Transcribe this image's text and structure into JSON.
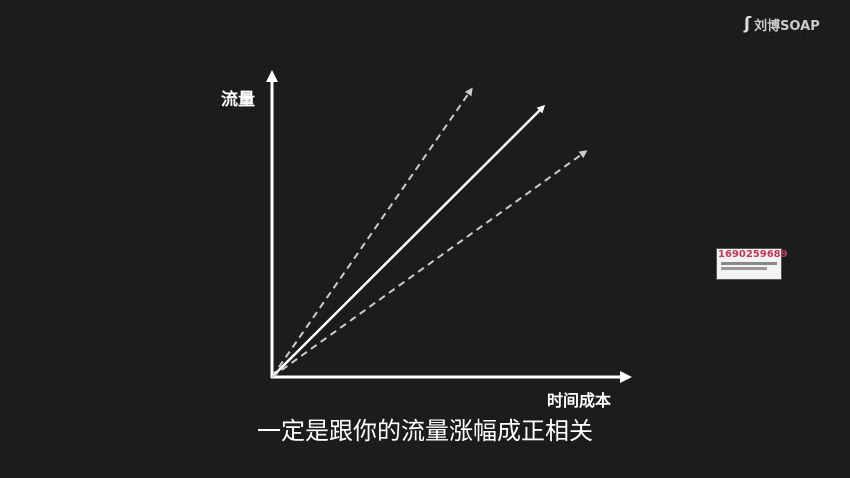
{
  "diagram": {
    "y_axis_label": "流量",
    "x_axis_label": "时间成本",
    "lines": [
      {
        "style": "dashed",
        "role": "upper"
      },
      {
        "style": "solid",
        "role": "middle"
      },
      {
        "style": "dashed",
        "role": "lower"
      }
    ],
    "line_color": "#ffffff",
    "dashed_color": "#cccccc"
  },
  "subtitle": "一定是跟你的流量涨幅成正相关",
  "logo": {
    "name": "刘博SOAP"
  },
  "watermark": {
    "number": "1690259689"
  }
}
